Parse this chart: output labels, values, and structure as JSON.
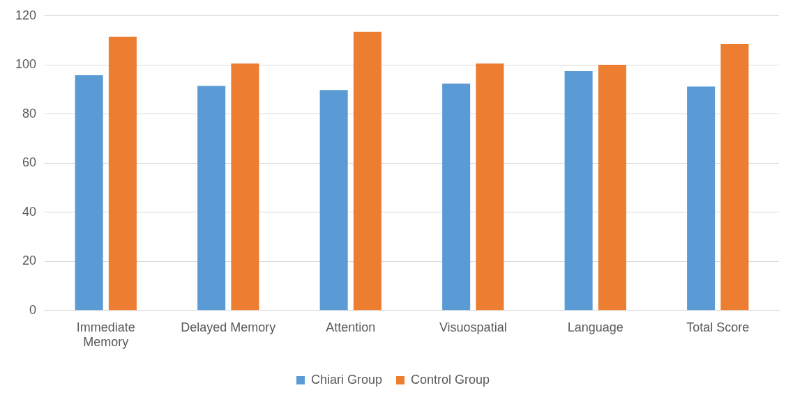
{
  "chart_data": {
    "type": "bar",
    "categories": [
      "Immediate Memory",
      "Delayed Memory",
      "Attention",
      "Visuospatial",
      "Language",
      "Total Score"
    ],
    "series": [
      {
        "name": "Chiari Group",
        "color": "#5b9bd5",
        "values": [
          95.8,
          91.5,
          89.8,
          92.4,
          97.5,
          91.2
        ]
      },
      {
        "name": "Control Group",
        "color": "#ed7d31",
        "values": [
          111.5,
          100.6,
          113.5,
          100.6,
          100.1,
          108.6
        ]
      }
    ],
    "ylim": [
      0,
      120
    ],
    "yticks": [
      0,
      20,
      40,
      60,
      80,
      100,
      120
    ],
    "grid": "y",
    "legend": "bottom"
  }
}
